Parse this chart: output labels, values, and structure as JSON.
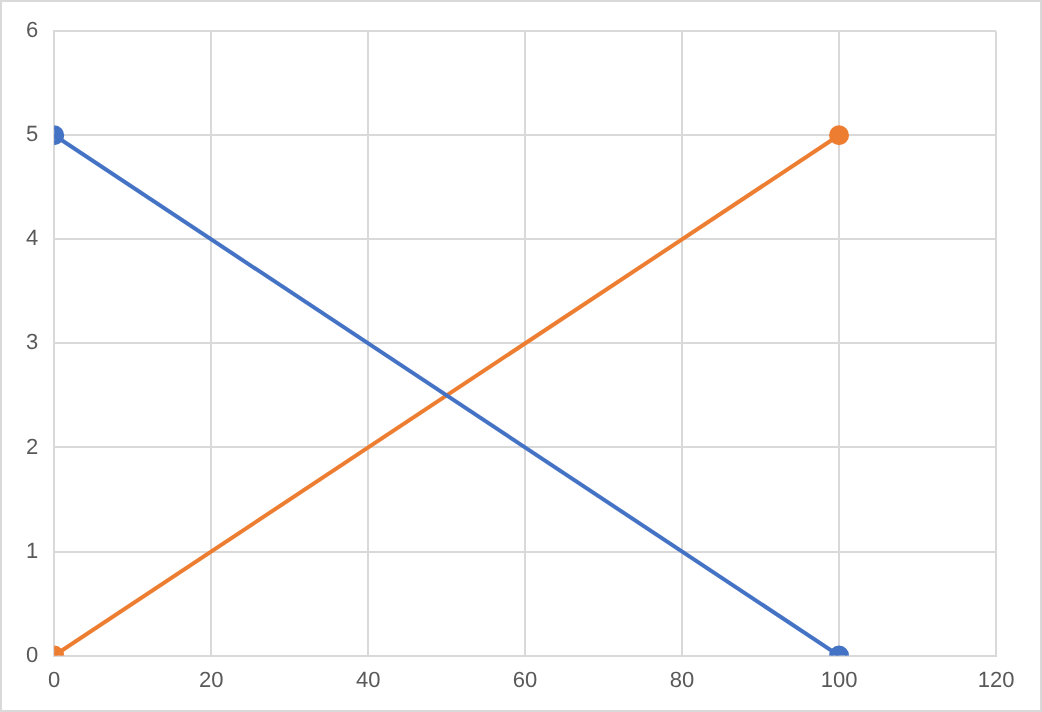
{
  "chart_data": {
    "type": "line",
    "x": [
      0,
      100
    ],
    "xlim": [
      0,
      120
    ],
    "xticks": [
      0,
      20,
      40,
      60,
      80,
      100,
      120
    ],
    "ylim": [
      0,
      6
    ],
    "yticks": [
      0,
      1,
      2,
      3,
      4,
      5,
      6
    ],
    "grid": true,
    "legend": false,
    "marker": "circle",
    "line_style": "solid",
    "series": [
      {
        "color": "#4472c4",
        "values": [
          5,
          0
        ]
      },
      {
        "color": "#ed7d31",
        "values": [
          0,
          5
        ]
      }
    ]
  }
}
